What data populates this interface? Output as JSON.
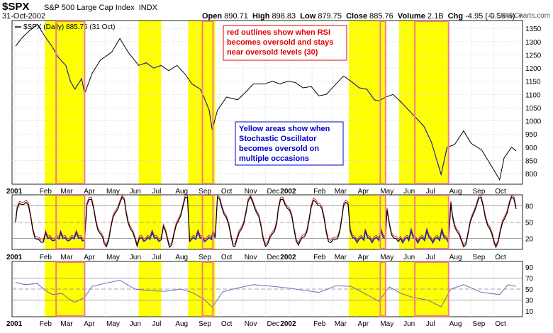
{
  "header": {
    "symbol": "$SPX",
    "name": "S&P 500 Large Cap Index",
    "exchange": "INDX",
    "date": "31-Oct-2002",
    "open_label": "Open",
    "open": "890.71",
    "high_label": "High",
    "high": "898.83",
    "low_label": "Low",
    "low": "879.75",
    "close_label": "Close",
    "close": "885.76",
    "volume_label": "Volume",
    "volume": "2.1B",
    "chg_label": "Chg",
    "chg": "-4.95 (-0.56%)",
    "logo": "© StockCharts.com"
  },
  "colors": {
    "highlight_yellow": "#ffff00",
    "rsi_outline": "#f08080",
    "price_line": "#000000",
    "stoch_line": "#000000",
    "stoch_signal": "#d03030",
    "stoch_oversold": "#2020c0",
    "rsi_line": "#6a6ab8",
    "annot_red_text": "#e00000",
    "annot_blue_text": "#0000cc",
    "grid": "#d8d8d8"
  },
  "chart_data": {
    "type": "line",
    "main": {
      "legend": "$SPX (Daily) 885.76 (31 Oct)",
      "ylim": [
        760,
        1380
      ],
      "yticks": [
        800,
        850,
        900,
        950,
        1000,
        1050,
        1100,
        1150,
        1200,
        1250,
        1300,
        1350
      ],
      "series": [
        {
          "name": "$SPX",
          "points": [
            [
              "2001-01-02",
              1283
            ],
            [
              "2001-01-10",
              1313
            ],
            [
              "2001-01-20",
              1340
            ],
            [
              "2001-01-31",
              1366
            ],
            [
              "2001-02-10",
              1320
            ],
            [
              "2001-02-20",
              1280
            ],
            [
              "2001-02-28",
              1240
            ],
            [
              "2001-03-10",
              1210
            ],
            [
              "2001-03-16",
              1150
            ],
            [
              "2001-03-22",
              1120
            ],
            [
              "2001-03-31",
              1160
            ],
            [
              "2001-04-04",
              1103
            ],
            [
              "2001-04-14",
              1180
            ],
            [
              "2001-04-25",
              1230
            ],
            [
              "2001-05-10",
              1260
            ],
            [
              "2001-05-21",
              1312
            ],
            [
              "2001-06-01",
              1260
            ],
            [
              "2001-06-15",
              1210
            ],
            [
              "2001-06-25",
              1220
            ],
            [
              "2001-07-05",
              1200
            ],
            [
              "2001-07-15",
              1210
            ],
            [
              "2001-07-25",
              1190
            ],
            [
              "2001-08-05",
              1210
            ],
            [
              "2001-08-15",
              1180
            ],
            [
              "2001-08-25",
              1140
            ],
            [
              "2001-09-05",
              1120
            ],
            [
              "2001-09-10",
              1090
            ],
            [
              "2001-09-17",
              1040
            ],
            [
              "2001-09-21",
              966
            ],
            [
              "2001-09-28",
              1040
            ],
            [
              "2001-10-10",
              1090
            ],
            [
              "2001-10-25",
              1080
            ],
            [
              "2001-11-05",
              1110
            ],
            [
              "2001-11-15",
              1140
            ],
            [
              "2001-11-30",
              1140
            ],
            [
              "2001-12-10",
              1150
            ],
            [
              "2001-12-20",
              1140
            ],
            [
              "2001-12-31",
              1150
            ],
            [
              "2002-01-10",
              1145
            ],
            [
              "2002-01-20",
              1125
            ],
            [
              "2002-01-31",
              1130
            ],
            [
              "2002-02-10",
              1095
            ],
            [
              "2002-02-20",
              1100
            ],
            [
              "2002-03-05",
              1140
            ],
            [
              "2002-03-15",
              1170
            ],
            [
              "2002-03-25",
              1150
            ],
            [
              "2002-04-05",
              1125
            ],
            [
              "2002-04-15",
              1120
            ],
            [
              "2002-04-25",
              1080
            ],
            [
              "2002-05-01",
              1075
            ],
            [
              "2002-05-10",
              1090
            ],
            [
              "2002-05-20",
              1100
            ],
            [
              "2002-05-31",
              1070
            ],
            [
              "2002-06-10",
              1040
            ],
            [
              "2002-06-20",
              1010
            ],
            [
              "2002-06-30",
              980
            ],
            [
              "2002-07-10",
              920
            ],
            [
              "2002-07-23",
              797
            ],
            [
              "2002-07-31",
              900
            ],
            [
              "2002-08-10",
              910
            ],
            [
              "2002-08-22",
              962
            ],
            [
              "2002-09-01",
              915
            ],
            [
              "2002-09-15",
              890
            ],
            [
              "2002-09-30",
              820
            ],
            [
              "2002-10-09",
              777
            ],
            [
              "2002-10-15",
              860
            ],
            [
              "2002-10-25",
              900
            ],
            [
              "2002-10-31",
              886
            ]
          ]
        }
      ]
    },
    "stochastic": {
      "ylim": [
        0,
        100
      ],
      "yticks": [
        20,
        50,
        80
      ],
      "levels": [
        20,
        50,
        80
      ]
    },
    "rsi": {
      "ylim": [
        0,
        100
      ],
      "yticks": [
        10,
        30,
        50,
        70,
        90
      ],
      "levels": [
        30,
        50,
        70
      ],
      "series": [
        {
          "name": "RSI",
          "points": [
            [
              "2001-01-02",
              62
            ],
            [
              "2001-01-15",
              58
            ],
            [
              "2001-01-31",
              60
            ],
            [
              "2001-02-10",
              48
            ],
            [
              "2001-02-20",
              40
            ],
            [
              "2001-03-05",
              42
            ],
            [
              "2001-03-16",
              30
            ],
            [
              "2001-03-22",
              26
            ],
            [
              "2001-04-04",
              35
            ],
            [
              "2001-04-14",
              55
            ],
            [
              "2001-04-30",
              60
            ],
            [
              "2001-05-21",
              66
            ],
            [
              "2001-06-10",
              50
            ],
            [
              "2001-07-01",
              47
            ],
            [
              "2001-07-20",
              46
            ],
            [
              "2001-08-10",
              50
            ],
            [
              "2001-08-25",
              44
            ],
            [
              "2001-09-10",
              32
            ],
            [
              "2001-09-21",
              17
            ],
            [
              "2001-10-05",
              45
            ],
            [
              "2001-10-25",
              52
            ],
            [
              "2001-11-15",
              58
            ],
            [
              "2001-12-10",
              55
            ],
            [
              "2001-12-31",
              52
            ],
            [
              "2002-01-20",
              48
            ],
            [
              "2002-02-10",
              44
            ],
            [
              "2002-03-05",
              56
            ],
            [
              "2002-03-25",
              55
            ],
            [
              "2002-04-15",
              40
            ],
            [
              "2002-05-01",
              28
            ],
            [
              "2002-05-15",
              54
            ],
            [
              "2002-05-31",
              42
            ],
            [
              "2002-06-15",
              35
            ],
            [
              "2002-07-05",
              30
            ],
            [
              "2002-07-23",
              18
            ],
            [
              "2002-08-05",
              50
            ],
            [
              "2002-08-22",
              58
            ],
            [
              "2002-09-15",
              44
            ],
            [
              "2002-10-09",
              40
            ],
            [
              "2002-10-20",
              58
            ],
            [
              "2002-10-31",
              55
            ]
          ]
        }
      ]
    },
    "x_labels": [
      {
        "t": "2001-01-01",
        "label": "2001",
        "bold": true
      },
      {
        "t": "2001-02-01",
        "label": "Feb"
      },
      {
        "t": "2001-03-01",
        "label": "Mar"
      },
      {
        "t": "2001-04-01",
        "label": "Apr"
      },
      {
        "t": "2001-05-01",
        "label": "May"
      },
      {
        "t": "2001-06-01",
        "label": "Jun"
      },
      {
        "t": "2001-07-01",
        "label": "Jul"
      },
      {
        "t": "2001-08-01",
        "label": "Aug"
      },
      {
        "t": "2001-09-01",
        "label": "Sep"
      },
      {
        "t": "2001-10-01",
        "label": "Oct"
      },
      {
        "t": "2001-11-01",
        "label": "Nov"
      },
      {
        "t": "2001-12-01",
        "label": "Dec"
      },
      {
        "t": "2002-01-01",
        "label": "2002",
        "bold": true
      },
      {
        "t": "2002-02-01",
        "label": "Feb"
      },
      {
        "t": "2002-03-01",
        "label": "Mar"
      },
      {
        "t": "2002-04-01",
        "label": "Apr"
      },
      {
        "t": "2002-05-01",
        "label": "May"
      },
      {
        "t": "2002-06-01",
        "label": "Jun"
      },
      {
        "t": "2002-07-01",
        "label": "Jul"
      },
      {
        "t": "2002-08-01",
        "label": "Aug"
      },
      {
        "t": "2002-09-01",
        "label": "Sep"
      },
      {
        "t": "2002-10-01",
        "label": "Oct"
      }
    ],
    "yellow_zones": [
      [
        "2001-02-10",
        "2001-04-05"
      ],
      [
        "2001-06-15",
        "2001-07-15"
      ],
      [
        "2001-08-20",
        "2001-09-25"
      ],
      [
        "2002-03-22",
        "2002-05-10"
      ],
      [
        "2002-05-28",
        "2002-08-02"
      ]
    ],
    "rsi_outlines": [
      [
        "2001-02-25",
        "2001-04-04"
      ],
      [
        "2001-09-08",
        "2001-09-22"
      ],
      [
        "2002-05-03",
        "2002-05-10"
      ],
      [
        "2002-06-18",
        "2002-08-02"
      ]
    ],
    "annotations": [
      {
        "text": [
          "red outlines show when RSI",
          "becomes oversold and stays",
          "near oversold levels (30)"
        ],
        "color": "red"
      },
      {
        "text": [
          "Yellow areas show when",
          "Stochastic Oscillator",
          "becomes oversold on",
          "multiple occasions"
        ],
        "color": "blue"
      }
    ]
  }
}
